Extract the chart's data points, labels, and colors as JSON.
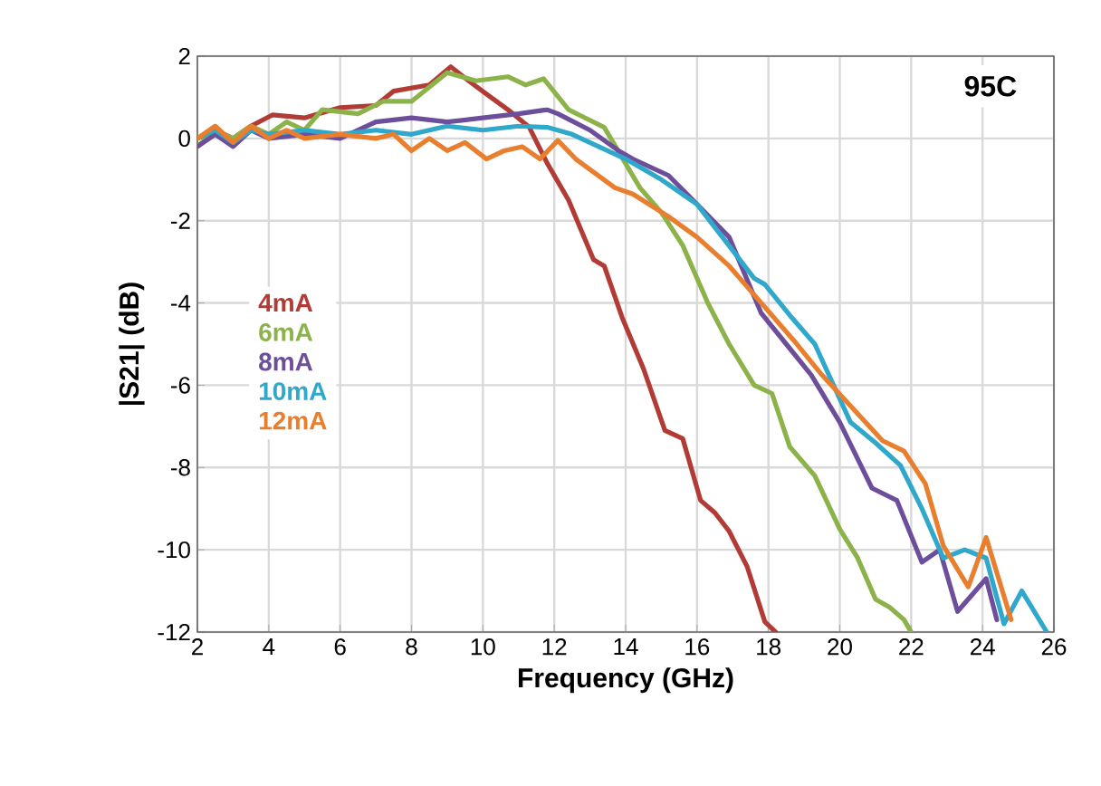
{
  "chart_data": {
    "type": "line",
    "xlabel": "Frequency (GHz)",
    "ylabel": "|S21| (dB)",
    "xlim": [
      2,
      26
    ],
    "ylim": [
      -12,
      2
    ],
    "xticks": [
      2,
      4,
      6,
      8,
      10,
      12,
      14,
      16,
      18,
      20,
      22,
      24,
      26
    ],
    "yticks": [
      -12,
      -10,
      -8,
      -6,
      -4,
      -2,
      0,
      2
    ],
    "grid": true,
    "legend": "left",
    "marker": "none",
    "line_style": "solid",
    "annotations": [
      "95C"
    ],
    "series": [
      {
        "name": "4mA",
        "color": "#b23b36",
        "x": [
          2,
          2.5,
          3,
          3.5,
          4.1,
          5,
          6,
          7,
          7.5,
          8.5,
          9.1,
          9.6,
          10.1,
          10.7,
          11.3,
          11.8,
          12.4,
          13.1,
          13.4,
          13.9,
          14.5,
          15.1,
          15.6,
          16.1,
          16.5,
          16.9,
          17.4,
          17.9,
          18.2
        ],
        "values": [
          0,
          0.2,
          0,
          0.3,
          0.57,
          0.5,
          0.75,
          0.8,
          1.15,
          1.3,
          1.74,
          1.4,
          1.08,
          0.7,
          0.27,
          -0.6,
          -1.5,
          -2.95,
          -3.1,
          -4.35,
          -5.6,
          -7.1,
          -7.3,
          -8.8,
          -9.1,
          -9.55,
          -10.4,
          -11.75,
          -12
        ]
      },
      {
        "name": "6mA",
        "color": "#8cb24a",
        "x": [
          2,
          2.5,
          3,
          3.5,
          4,
          4.5,
          5,
          5.5,
          6.5,
          7.2,
          8,
          9,
          9.8,
          10.7,
          11.2,
          11.7,
          12.4,
          12.7,
          13.4,
          14.4,
          15,
          15.6,
          16.3,
          16.9,
          17.6,
          18.1,
          18.6,
          19.3,
          20,
          20.5,
          21,
          21.4,
          21.8,
          22
        ],
        "values": [
          -0.2,
          0.2,
          0,
          0.3,
          0.1,
          0.4,
          0.2,
          0.7,
          0.6,
          0.9,
          0.9,
          1.6,
          1.4,
          1.5,
          1.3,
          1.45,
          0.7,
          0.57,
          0.27,
          -1.2,
          -1.8,
          -2.6,
          -4.0,
          -5.0,
          -6.0,
          -6.2,
          -7.5,
          -8.2,
          -9.5,
          -10.2,
          -11.2,
          -11.4,
          -11.7,
          -12
        ]
      },
      {
        "name": "8mA",
        "color": "#6d4e9a",
        "x": [
          2,
          2.5,
          3,
          3.5,
          4,
          5,
          6,
          7,
          8,
          9,
          10,
          11,
          11.8,
          12.1,
          13,
          13.8,
          14.2,
          15.2,
          16,
          16.9,
          17.8,
          18.5,
          19.2,
          20,
          20.9,
          21.6,
          22.3,
          22.8,
          23.3,
          24.1,
          24.4
        ],
        "values": [
          -0.2,
          0.1,
          -0.2,
          0.2,
          0,
          0.1,
          0,
          0.4,
          0.5,
          0.4,
          0.5,
          0.6,
          0.7,
          0.6,
          0.2,
          -0.3,
          -0.5,
          -0.9,
          -1.6,
          -2.4,
          -4.25,
          -5.0,
          -5.75,
          -6.9,
          -8.5,
          -8.8,
          -10.3,
          -10,
          -11.5,
          -10.7,
          -11.7
        ]
      },
      {
        "name": "10mA",
        "color": "#30a8cc",
        "x": [
          2,
          2.5,
          3,
          3.5,
          4,
          5,
          6,
          7,
          8,
          9,
          10,
          11,
          11.8,
          12.5,
          14,
          15,
          16,
          16.8,
          17.6,
          17.9,
          18.6,
          19.3,
          20.3,
          21,
          21.7,
          22.3,
          22.9,
          23.5,
          24.1,
          24.6,
          25.1,
          25.8
        ],
        "values": [
          0,
          0.2,
          -0.1,
          0.2,
          0.1,
          0.2,
          0.1,
          0.2,
          0.1,
          0.3,
          0.2,
          0.3,
          0.27,
          0.1,
          -0.5,
          -1.0,
          -1.6,
          -2.5,
          -3.4,
          -3.55,
          -4.3,
          -5.0,
          -6.9,
          -7.4,
          -7.95,
          -9.0,
          -10.2,
          -10.0,
          -10.2,
          -11.8,
          -11,
          -12
        ]
      },
      {
        "name": "12mA",
        "color": "#e87e2e",
        "x": [
          2,
          2.5,
          3,
          3.5,
          4,
          4.5,
          5,
          6,
          7,
          7.5,
          8,
          8.5,
          9,
          9.5,
          10.1,
          10.6,
          11.1,
          11.6,
          12.1,
          12.6,
          13.7,
          14.2,
          15.2,
          16,
          16.9,
          17.9,
          18.7,
          19.5,
          20.3,
          21.2,
          21.8,
          22.4,
          22.9,
          23.6,
          24.1,
          24.8
        ],
        "values": [
          0,
          0.3,
          -0.1,
          0.3,
          0,
          0.2,
          0,
          0.1,
          0,
          0.1,
          -0.3,
          0,
          -0.3,
          -0.1,
          -0.5,
          -0.3,
          -0.2,
          -0.5,
          -0.05,
          -0.5,
          -1.2,
          -1.35,
          -1.9,
          -2.4,
          -3.1,
          -4.1,
          -4.9,
          -5.75,
          -6.5,
          -7.35,
          -7.6,
          -8.4,
          -9.9,
          -10.9,
          -9.7,
          -11.7
        ]
      }
    ]
  }
}
